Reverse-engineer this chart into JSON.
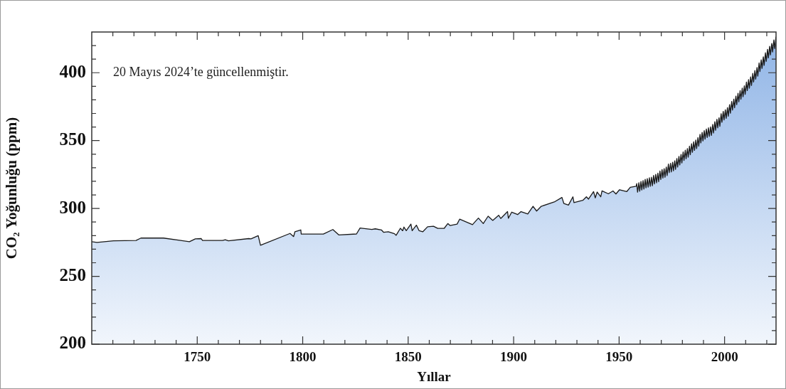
{
  "chart_data": {
    "type": "area",
    "xlabel": "Yıllar",
    "ylabel": "CO₂ Yoğunluğu (ppm)",
    "annotations": [
      "20 Mayıs 2024’te güncellenmiştir."
    ],
    "xlim": [
      1700,
      2024.4
    ],
    "ylim": [
      200,
      430
    ],
    "xticks": [
      {
        "value": 1710,
        "label": null
      },
      {
        "value": 1720,
        "label": null
      },
      {
        "value": 1730,
        "label": null
      },
      {
        "value": 1740,
        "label": null
      },
      1750,
      {
        "value": 1760,
        "label": null
      },
      {
        "value": 1770,
        "label": null
      },
      {
        "value": 1780,
        "label": null
      },
      {
        "value": 1790,
        "label": null
      },
      1800,
      {
        "value": 1810,
        "label": null
      },
      {
        "value": 1820,
        "label": null
      },
      {
        "value": 1830,
        "label": null
      },
      {
        "value": 1840,
        "label": null
      },
      1850,
      {
        "value": 1860,
        "label": null
      },
      {
        "value": 1870,
        "label": null
      },
      {
        "value": 1880,
        "label": null
      },
      {
        "value": 1890,
        "label": null
      },
      1900,
      {
        "value": 1910,
        "label": null
      },
      {
        "value": 1920,
        "label": null
      },
      {
        "value": 1930,
        "label": null
      },
      {
        "value": 1940,
        "label": null
      },
      1950,
      {
        "value": 1960,
        "label": null
      },
      {
        "value": 1970,
        "label": null
      },
      {
        "value": 1980,
        "label": null
      },
      {
        "value": 1990,
        "label": null
      },
      2000,
      {
        "value": 2010,
        "label": null
      },
      {
        "value": 2020,
        "label": null
      }
    ],
    "yticks": [
      200,
      {
        "value": 210,
        "label": null
      },
      {
        "value": 220,
        "label": null
      },
      {
        "value": 230,
        "label": null
      },
      {
        "value": 240,
        "label": null
      },
      250,
      {
        "value": 260,
        "label": null
      },
      {
        "value": 270,
        "label": null
      },
      {
        "value": 280,
        "label": null
      },
      {
        "value": 290,
        "label": null
      },
      300,
      {
        "value": 310,
        "label": null
      },
      {
        "value": 320,
        "label": null
      },
      {
        "value": 330,
        "label": null
      },
      {
        "value": 340,
        "label": null
      },
      350,
      {
        "value": 360,
        "label": null
      },
      {
        "value": 370,
        "label": null
      },
      {
        "value": 380,
        "label": null
      },
      {
        "value": 390,
        "label": null
      },
      400,
      {
        "value": 410,
        "label": null
      },
      {
        "value": 420,
        "label": null
      }
    ],
    "grid": false,
    "legend": false,
    "series": [
      {
        "color": "#8fb4e6",
        "x": [
          1700,
          1702.5,
          1710.3,
          1721,
          1723.3,
          1734,
          1746.3,
          1749.1,
          1751.9,
          1752.5,
          1762,
          1763.3,
          1764.8,
          1774.4,
          1775.5,
          1778.9,
          1780,
          1794,
          1795.7,
          1796.3,
          1799.1,
          1799.3,
          1809.8,
          1814.3,
          1817.1,
          1825.5,
          1827.2,
          1832.8,
          1834.4,
          1837.3,
          1838.4,
          1840.6,
          1843.5,
          1844.3,
          1846.3,
          1847.4,
          1848,
          1849.1,
          1851.3,
          1851.9,
          1853.9,
          1855.2,
          1856.9,
          1859.2,
          1862,
          1864,
          1867.1,
          1868.8,
          1869.9,
          1873.2,
          1874.4,
          1880.5,
          1883.3,
          1885.6,
          1887.9,
          1890.1,
          1892.9,
          1893.9,
          1897.1,
          1897.5,
          1899.1,
          1901.9,
          1903.5,
          1906.7,
          1909.2,
          1910.9,
          1913.1,
          1919.3,
          1922.9,
          1923.8,
          1926,
          1928.1,
          1928.6,
          1932.8,
          1934.5,
          1935.5,
          1937.9,
          1938.7,
          1939.6,
          1941.3,
          1941.9,
          1944.9,
          1947.1,
          1948.5,
          1950.2,
          1953.6,
          1955.3,
          1958.1,
          1958.37,
          1958.75,
          1959.37,
          1959.75,
          1960.37,
          1960.75,
          1961.37,
          1961.75,
          1962.37,
          1962.75,
          1963.37,
          1963.75,
          1964.37,
          1964.75,
          1965.37,
          1965.75,
          1966.37,
          1966.75,
          1967.37,
          1967.75,
          1968.37,
          1968.75,
          1969.37,
          1969.75,
          1970.37,
          1970.75,
          1971.37,
          1971.75,
          1972.37,
          1972.75,
          1973.37,
          1973.75,
          1974.37,
          1974.75,
          1975.37,
          1975.75,
          1976.37,
          1976.75,
          1977.37,
          1977.75,
          1978.37,
          1978.75,
          1979.37,
          1979.75,
          1980.37,
          1980.75,
          1981.37,
          1981.75,
          1982.37,
          1982.75,
          1983.37,
          1983.75,
          1984.37,
          1984.75,
          1985.37,
          1985.75,
          1986.37,
          1986.75,
          1987.37,
          1987.75,
          1988.37,
          1988.75,
          1989.37,
          1989.75,
          1990.37,
          1990.75,
          1991.37,
          1991.75,
          1992.37,
          1992.75,
          1993.37,
          1993.75,
          1994.37,
          1994.75,
          1995.37,
          1995.75,
          1996.37,
          1996.75,
          1997.37,
          1997.75,
          1998.37,
          1998.75,
          1999.37,
          1999.75,
          2000.37,
          2000.75,
          2001.37,
          2001.75,
          2002.37,
          2002.75,
          2003.37,
          2003.75,
          2004.37,
          2004.75,
          2005.37,
          2005.75,
          2006.37,
          2006.75,
          2007.37,
          2007.75,
          2008.37,
          2008.75,
          2009.37,
          2009.75,
          2010.37,
          2010.75,
          2011.37,
          2011.75,
          2012.37,
          2012.75,
          2013.37,
          2013.75,
          2014.37,
          2014.75,
          2015.37,
          2015.75,
          2016.37,
          2016.75,
          2017.37,
          2017.75,
          2018.37,
          2018.75,
          2019.37,
          2019.75,
          2020.37,
          2020.75,
          2021.37,
          2021.75,
          2022.37,
          2022.75,
          2023.37,
          2023.75,
          2024.37
        ],
        "values": [
          275.5,
          275.0,
          276.2,
          276.4,
          278.2,
          278.2,
          275.5,
          277.6,
          277.8,
          276.4,
          276.4,
          276.9,
          276.2,
          277.8,
          277.6,
          280.0,
          272.9,
          281.6,
          279.3,
          282.8,
          284.2,
          281.1,
          281.1,
          284.5,
          280.5,
          281.2,
          285.6,
          284.5,
          285.0,
          284.2,
          282.4,
          282.8,
          281.4,
          280.2,
          285.4,
          283.6,
          286.3,
          283.6,
          288.5,
          283.6,
          287.7,
          283.6,
          282.8,
          286.5,
          286.9,
          285.3,
          285.4,
          288.9,
          287.4,
          288.5,
          292.1,
          288.1,
          292.9,
          288.9,
          294.3,
          291.2,
          295.0,
          292.6,
          297.7,
          292.8,
          297.3,
          295.5,
          297.7,
          296.0,
          301.6,
          298.1,
          301.6,
          304.8,
          308.1,
          303.7,
          302.5,
          308.6,
          304.3,
          306.0,
          308.6,
          306.9,
          312.4,
          307.8,
          312.1,
          308.6,
          313.0,
          310.8,
          312.9,
          310.7,
          313.8,
          312.4,
          315.6,
          316.4,
          318.3,
          312.0,
          319.0,
          312.7,
          319.9,
          313.6,
          320.6,
          314.3,
          321.5,
          315.2,
          322.0,
          315.7,
          322.6,
          316.3,
          323.0,
          316.7,
          324.4,
          318.1,
          325.2,
          318.9,
          326.0,
          319.7,
          327.6,
          321.3,
          328.7,
          322.4,
          329.3,
          323.0,
          330.5,
          324.2,
          332.7,
          326.4,
          333.2,
          326.9,
          334.1,
          327.8,
          335.1,
          328.8,
          336.8,
          330.5,
          338.4,
          332.1,
          339.8,
          333.5,
          341.7,
          335.4,
          342.9,
          336.6,
          344.1,
          337.8,
          345.9,
          339.6,
          347.7,
          341.4,
          349.1,
          342.8,
          350.4,
          344.1,
          352.2,
          345.9,
          354.6,
          348.3,
          356.1,
          349.8,
          357.4,
          351.1,
          358.6,
          352.3,
          359.4,
          353.1,
          360.1,
          353.8,
          361.9,
          355.6,
          363.9,
          357.6,
          365.7,
          359.4,
          366.8,
          360.5,
          369.8,
          363.5,
          371.5,
          365.2,
          372.7,
          366.4,
          374.3,
          368.0,
          376.5,
          370.2,
          378.8,
          372.5,
          380.5,
          374.2,
          382.8,
          376.5,
          384.9,
          378.6,
          386.8,
          380.5,
          388.6,
          382.3,
          390.4,
          384.1,
          393.1,
          386.8,
          394.9,
          388.6,
          396.9,
          390.6,
          399.5,
          393.2,
          401.6,
          395.3,
          403.8,
          397.5,
          407.2,
          400.9,
          409.5,
          403.2,
          411.7,
          405.4,
          414.7,
          408.4,
          417.2,
          410.9,
          419.5,
          413.2,
          421.6,
          415.3,
          424.1,
          417.8,
          426.5
        ]
      }
    ]
  }
}
